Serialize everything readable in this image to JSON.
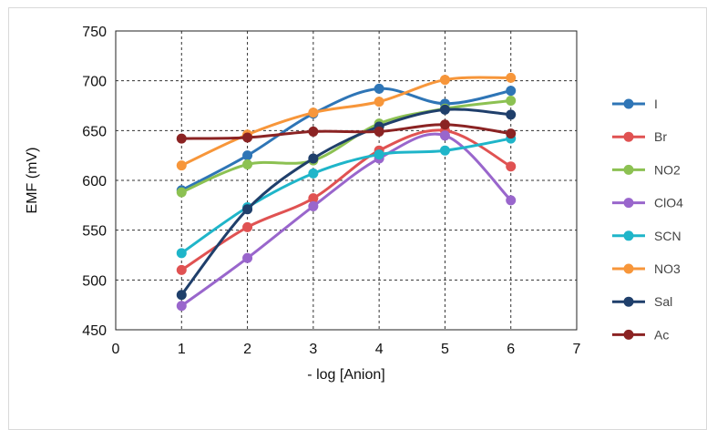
{
  "chart_data": {
    "type": "line",
    "title": "",
    "xlabel": "- log [Anion]",
    "ylabel": "EMF (mV)",
    "xlim": [
      0,
      7
    ],
    "ylim": [
      450,
      750
    ],
    "x_ticks": [
      "0",
      "1",
      "2",
      "3",
      "4",
      "5",
      "6",
      "7"
    ],
    "y_ticks": [
      "450",
      "500",
      "550",
      "600",
      "650",
      "700",
      "750"
    ],
    "grid": "dashed",
    "legend_position": "right",
    "smooth": true,
    "x": [
      1,
      2,
      3,
      4,
      5,
      6
    ],
    "series": [
      {
        "name": "I",
        "color": "#2e75b6",
        "values": [
          590,
          625,
          667,
          692,
          677,
          690
        ]
      },
      {
        "name": "Br",
        "color": "#e05252",
        "values": [
          510,
          553,
          582,
          630,
          650,
          614
        ]
      },
      {
        "name": "NO2",
        "color": "#8cc152",
        "values": [
          588,
          616,
          620,
          657,
          672,
          680
        ]
      },
      {
        "name": "ClO4",
        "color": "#9966cc",
        "values": [
          474,
          522,
          574,
          622,
          645,
          580
        ]
      },
      {
        "name": "SCN",
        "color": "#1fb5c9",
        "values": [
          527,
          573,
          607,
          626,
          630,
          642
        ]
      },
      {
        "name": "NO3",
        "color": "#f7963a",
        "values": [
          615,
          646,
          668,
          679,
          701,
          703
        ]
      },
      {
        "name": "Sal",
        "color": "#1f3f6b",
        "values": [
          485,
          571,
          622,
          654,
          671,
          666
        ]
      },
      {
        "name": "Ac",
        "color": "#8b2323",
        "values": [
          642,
          643,
          649,
          649,
          656,
          647
        ]
      }
    ]
  }
}
